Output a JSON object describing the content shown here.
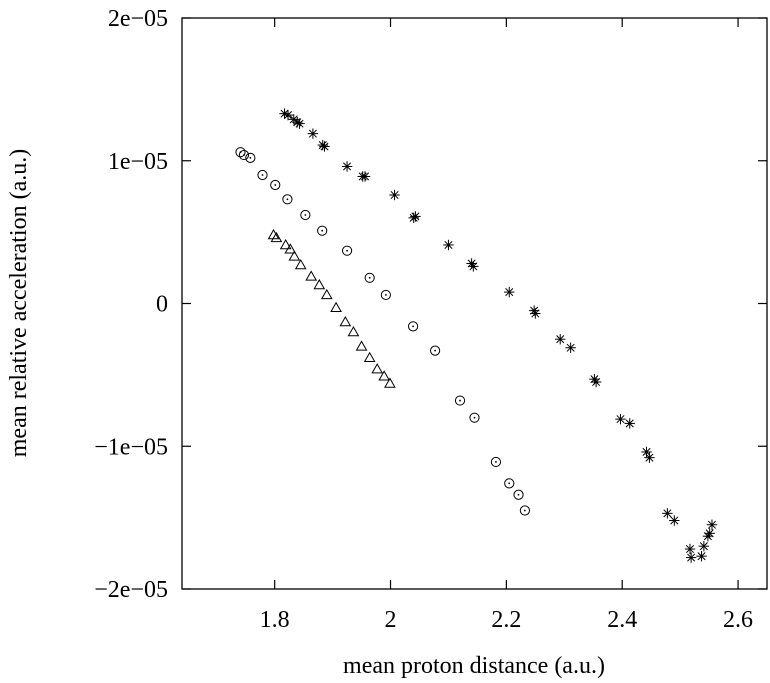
{
  "chart_data": {
    "type": "scatter",
    "title": "",
    "xlabel": "mean proton distance (a.u.)",
    "ylabel": "mean relative acceleration (a.u.)",
    "xlim": [
      1.64,
      2.65
    ],
    "ylim": [
      -2e-05,
      2e-05
    ],
    "xticks": [
      1.8,
      2.0,
      2.2,
      2.4,
      2.6
    ],
    "xtick_labels": [
      "1.8",
      "2",
      "2.2",
      "2.4",
      "2.6"
    ],
    "yticks": [
      -2e-05,
      -1e-05,
      0,
      1e-05,
      2e-05
    ],
    "ytick_labels": [
      "−2e−05",
      "−1e−05",
      "0",
      "1e−05",
      "2e−05"
    ],
    "grid": false,
    "legend": "none",
    "series": [
      {
        "marker": "star",
        "points": [
          [
            1.817,
            1.33e-05
          ],
          [
            1.823,
            1.32e-05
          ],
          [
            1.833,
            1.29e-05
          ],
          [
            1.839,
            1.27e-05
          ],
          [
            1.843,
            1.26e-05
          ],
          [
            1.866,
            1.19e-05
          ],
          [
            1.883,
            1.11e-05
          ],
          [
            1.886,
            1.1e-05
          ],
          [
            1.925,
            9.6e-06
          ],
          [
            1.952,
            8.9e-06
          ],
          [
            1.956,
            8.9e-06
          ],
          [
            2.007,
            7.6e-06
          ],
          [
            2.04,
            6e-06
          ],
          [
            2.043,
            6.1e-06
          ],
          [
            2.1,
            4.1e-06
          ],
          [
            2.14,
            2.8e-06
          ],
          [
            2.143,
            2.6e-06
          ],
          [
            2.205,
            8e-07
          ],
          [
            2.248,
            -5e-07
          ],
          [
            2.25,
            -7e-07
          ],
          [
            2.293,
            -2.5e-06
          ],
          [
            2.311,
            -3.1e-06
          ],
          [
            2.352,
            -5.3e-06
          ],
          [
            2.355,
            -5.5e-06
          ],
          [
            2.397,
            -8.1e-06
          ],
          [
            2.413,
            -8.4e-06
          ],
          [
            2.442,
            -1.04e-05
          ],
          [
            2.447,
            -1.08e-05
          ],
          [
            2.478,
            -1.47e-05
          ],
          [
            2.49,
            -1.52e-05
          ],
          [
            2.517,
            -1.72e-05
          ],
          [
            2.519,
            -1.78e-05
          ],
          [
            2.537,
            -1.77e-05
          ],
          [
            2.541,
            -1.7e-05
          ],
          [
            2.548,
            -1.63e-05
          ],
          [
            2.551,
            -1.61e-05
          ],
          [
            2.555,
            -1.55e-05
          ]
        ]
      },
      {
        "marker": "circle",
        "points": [
          [
            1.741,
            1.06e-05
          ],
          [
            1.747,
            1.04e-05
          ],
          [
            1.758,
            1.02e-05
          ],
          [
            1.779,
            9e-06
          ],
          [
            1.801,
            8.3e-06
          ],
          [
            1.822,
            7.3e-06
          ],
          [
            1.853,
            6.2e-06
          ],
          [
            1.882,
            5.1e-06
          ],
          [
            1.925,
            3.7e-06
          ],
          [
            1.964,
            1.8e-06
          ],
          [
            1.992,
            6e-07
          ],
          [
            2.039,
            -1.6e-06
          ],
          [
            2.077,
            -3.3e-06
          ],
          [
            2.12,
            -6.8e-06
          ],
          [
            2.145,
            -8e-06
          ],
          [
            2.182,
            -1.11e-05
          ],
          [
            2.205,
            -1.26e-05
          ],
          [
            2.221,
            -1.34e-05
          ],
          [
            2.232,
            -1.45e-05
          ]
        ]
      },
      {
        "marker": "triangle",
        "points": [
          [
            1.798,
            4.8e-06
          ],
          [
            1.803,
            4.6e-06
          ],
          [
            1.819,
            4.1e-06
          ],
          [
            1.827,
            3.8e-06
          ],
          [
            1.834,
            3.3e-06
          ],
          [
            1.845,
            2.7e-06
          ],
          [
            1.863,
            1.9e-06
          ],
          [
            1.877,
            1.3e-06
          ],
          [
            1.89,
            6e-07
          ],
          [
            1.906,
            -3e-07
          ],
          [
            1.922,
            -1.3e-06
          ],
          [
            1.936,
            -2e-06
          ],
          [
            1.95,
            -3e-06
          ],
          [
            1.964,
            -3.8e-06
          ],
          [
            1.977,
            -4.6e-06
          ],
          [
            1.989,
            -5.1e-06
          ],
          [
            1.999,
            -5.6e-06
          ]
        ]
      }
    ]
  }
}
